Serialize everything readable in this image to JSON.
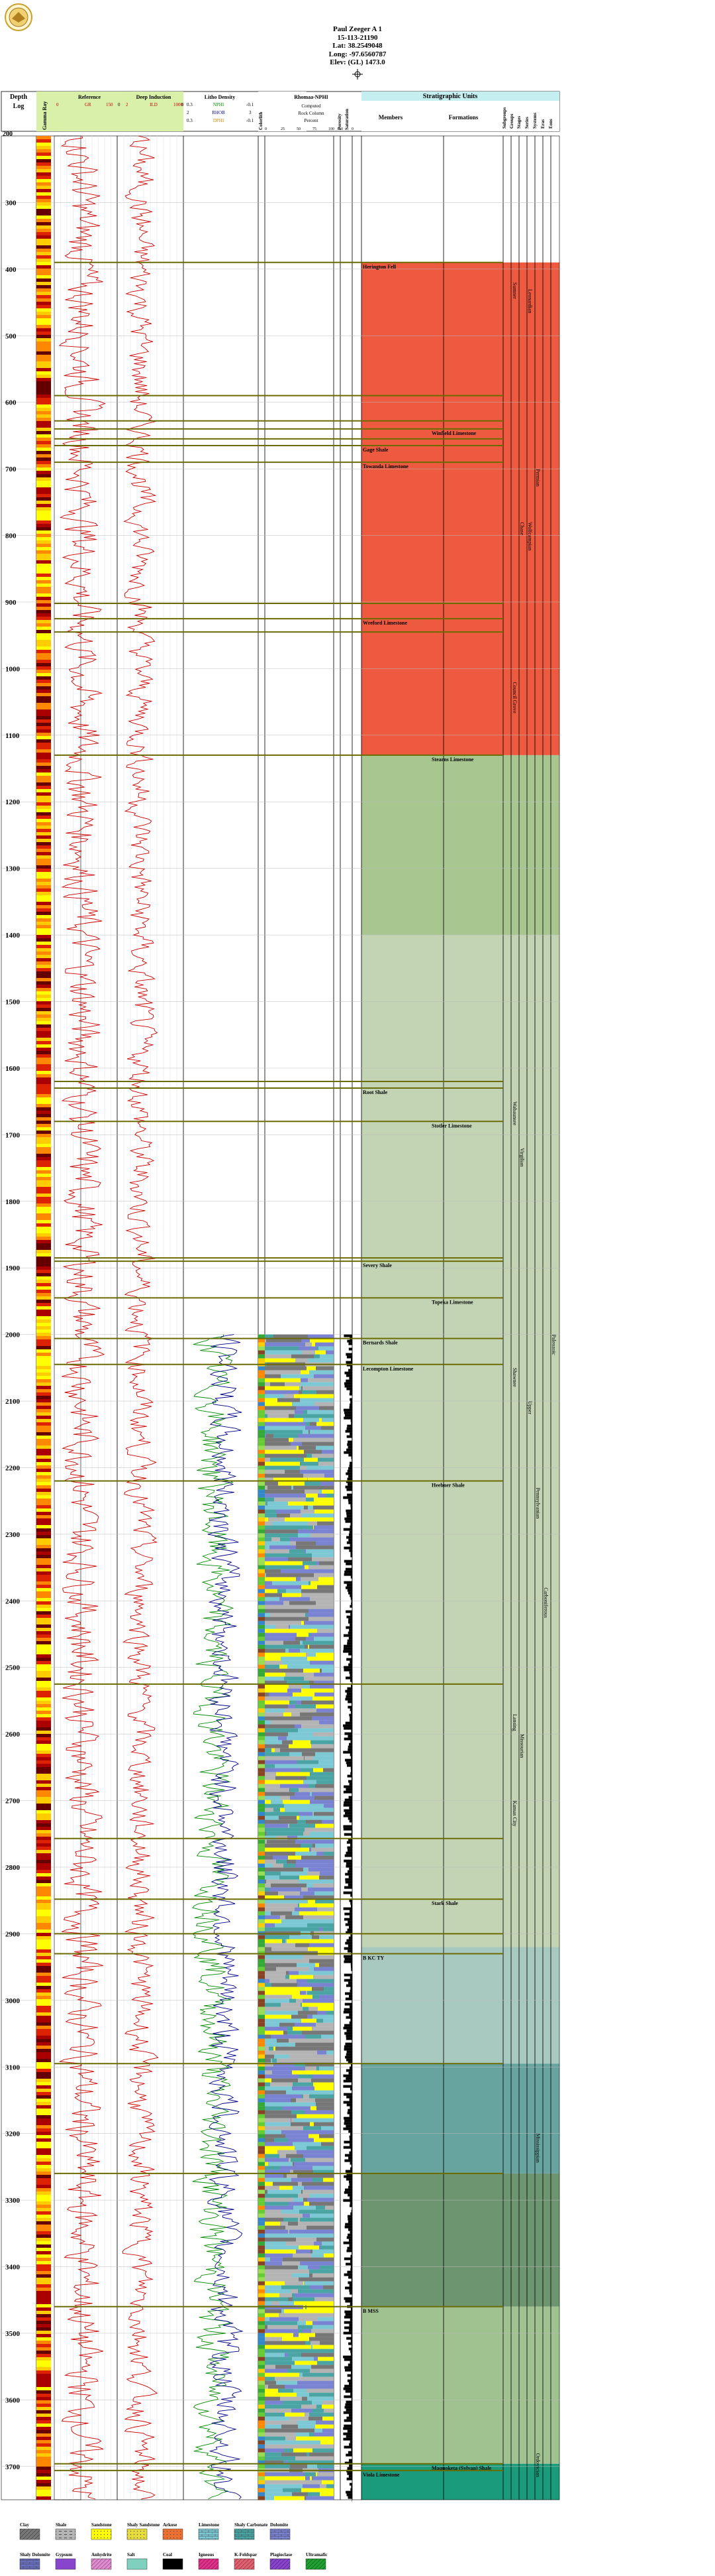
{
  "well": {
    "name": "Paul Zeeger A 1",
    "api": "15-113-21190",
    "lat": "Lat: 38.2549048",
    "long": "Long: -97.6560787",
    "elev": "Elev: (GL) 1473.0"
  },
  "columns": {
    "depth_header_1": "Depth",
    "depth_header_2": "Log",
    "gamma_header": "Gamma Ray",
    "gamma_left": "0",
    "gamma_right": "150",
    "reference": "Reference",
    "ref_gr": "GR",
    "ref_left": "0",
    "ref_right": "150",
    "ref_unit": "0",
    "deep_induction": "Deep Induction",
    "ind_left": "2",
    "ind_mid": "ILD",
    "ind_right": "1000",
    "ind_unit": "0",
    "litho_density": "Litho Density",
    "ld_l1": "0.3",
    "ld_n1": "NPHI",
    "ld_r1": "-0.1",
    "ld_l2": "2",
    "ld_n2": "RHOB",
    "ld_r2": "3",
    "ld_l3": "0.3",
    "ld_n3": "DPHI",
    "ld_r3": "-0.1",
    "colorlith": "Colorlith",
    "mineral_header": "Rhomaa-NPHI",
    "mineral_sub1": "Computed",
    "mineral_sub2": "Rock Column",
    "mineral_sub3": "Percent",
    "mineral_ticks": [
      "0",
      "25",
      "50",
      "75",
      "100"
    ],
    "porosity": "Porosity",
    "saturation": "Saturation",
    "porosity_ticks": [
      "50",
      "0"
    ],
    "strat_units": "Stratigraphic Units",
    "members": "Members",
    "formations": "Formations",
    "subgroups": "Subgroups",
    "groups": "Groups",
    "stages": "Stages",
    "series": "Series",
    "systems": "Systems",
    "eras": "Eras",
    "eons": "Eons"
  },
  "chart_data": {
    "type": "well-log",
    "depth_range": [
      200,
      3750
    ],
    "depth_ticks": [
      300,
      400,
      500,
      600,
      700,
      800,
      900,
      1000,
      1100,
      1200,
      1300,
      1400,
      1500,
      1600,
      1700,
      1800,
      1900,
      2000,
      2100,
      2200,
      2300,
      2400,
      2500,
      2600,
      2700,
      2800,
      2900,
      3000,
      3100,
      3200,
      3300,
      3400,
      3500,
      3600,
      3700
    ],
    "depth_tick_labels": [
      "300",
      "400",
      "500",
      "600",
      "700",
      "800",
      "900",
      "1000",
      "1100",
      "1200",
      "1300",
      "1400",
      "1500",
      "1600",
      "1700",
      "1800",
      "1900",
      "2000",
      "2100",
      "2200",
      "2300",
      "2400",
      "2500",
      "2600",
      "2700",
      "2800",
      "2900",
      "3000",
      "3100",
      "3200",
      "3300",
      "3400",
      "3500",
      "3600",
      "3700"
    ],
    "start_label": "200",
    "tops": [
      {
        "name": "Herington Fell",
        "depth": 390
      },
      {
        "name": "",
        "depth": 590
      },
      {
        "name": "",
        "depth": 628
      },
      {
        "name": "",
        "depth": 655
      },
      {
        "name": "Winfield Limestone",
        "depth": 640
      },
      {
        "name": "Gage Shale",
        "depth": 665
      },
      {
        "name": "Towanda Limestone",
        "depth": 690
      },
      {
        "name": "",
        "depth": 902
      },
      {
        "name": "Wreford Limestone",
        "depth": 925
      },
      {
        "name": "",
        "depth": 945
      },
      {
        "name": "Stearns Limestone",
        "depth": 1130
      },
      {
        "name": "",
        "depth": 1620
      },
      {
        "name": "Root Shale",
        "depth": 1630
      },
      {
        "name": "Stotler Limestone",
        "depth": 1680
      },
      {
        "name": "",
        "depth": 1885
      },
      {
        "name": "Severy Shale",
        "depth": 1890
      },
      {
        "name": "Topeka Limestone",
        "depth": 1945
      },
      {
        "name": "Bernards Shale",
        "depth": 2006
      },
      {
        "name": "Lecompton Limestone",
        "depth": 2045
      },
      {
        "name": "Heebner Shale",
        "depth": 2220
      },
      {
        "name": "",
        "depth": 2525
      },
      {
        "name": "",
        "depth": 2757
      },
      {
        "name": "Stark Shale",
        "depth": 2848
      },
      {
        "name": "",
        "depth": 2900
      },
      {
        "name": "B KC TY",
        "depth": 2930
      },
      {
        "name": "",
        "depth": 3095
      },
      {
        "name": "",
        "depth": 3260
      },
      {
        "name": "B MSS",
        "depth": 3460
      },
      {
        "name": "Maquoketa (Sylvan) Shale",
        "depth": 3696
      },
      {
        "name": "Viola Limestone",
        "depth": 3706
      },
      {
        "name": "",
        "depth": 3870
      }
    ],
    "strat_bands": [
      {
        "from": 390,
        "to": 1130,
        "color": "#ee5a40"
      },
      {
        "from": 1130,
        "to": 1400,
        "color": "#a8c690"
      },
      {
        "from": 1400,
        "to": 2920,
        "color": "#c2d4b4"
      },
      {
        "from": 2920,
        "to": 3095,
        "color": "#a8c9c0"
      },
      {
        "from": 3095,
        "to": 3260,
        "color": "#67a4a0"
      },
      {
        "from": 3260,
        "to": 3460,
        "color": "#6d9670"
      },
      {
        "from": 3460,
        "to": 3696,
        "color": "#a0c290"
      },
      {
        "from": 3696,
        "to": 3870,
        "color": "#1a9c7c"
      }
    ],
    "strat_labels": [
      {
        "col": "stages",
        "text": "Chase",
        "depth": 780
      },
      {
        "col": "series",
        "text": "Wolfcampian",
        "depth": 780
      },
      {
        "col": "systems",
        "text": "Permian",
        "depth": 700
      },
      {
        "col": "groups",
        "text": "Sumner",
        "depth": 420
      },
      {
        "col": "series",
        "text": "Leonardian",
        "depth": 430
      },
      {
        "col": "groups",
        "text": "Council Grove",
        "depth": 1020
      },
      {
        "col": "groups",
        "text": "Wabaunsee",
        "depth": 1650
      },
      {
        "col": "groups",
        "text": "Shawnee",
        "depth": 2050
      },
      {
        "col": "groups",
        "text": "Lansing",
        "depth": 2570
      },
      {
        "col": "groups",
        "text": "Kansas City",
        "depth": 2700
      },
      {
        "col": "stages",
        "text": "Virgilian",
        "depth": 1720
      },
      {
        "col": "stages",
        "text": "Missourian",
        "depth": 2600
      },
      {
        "col": "series",
        "text": "Upper",
        "depth": 2100
      },
      {
        "col": "systems",
        "text": "Pennsylvanian",
        "depth": 2230
      },
      {
        "col": "eras",
        "text": "Carboniferous",
        "depth": 2380
      },
      {
        "col": "eons",
        "text": "Paleozoic",
        "depth": 2000
      },
      {
        "col": "systems",
        "text": "Mississippian",
        "depth": 3200
      },
      {
        "col": "systems",
        "text": "Ordovician",
        "depth": 3680
      }
    ],
    "legend": [
      {
        "label": "Clay",
        "color": "#777777",
        "pattern": "hatch"
      },
      {
        "label": "Shale",
        "color": "#b4b4b4",
        "pattern": "dash"
      },
      {
        "label": "Sandstone",
        "color": "#ffff00",
        "pattern": "dot"
      },
      {
        "label": "Shaly Sandstone",
        "color": "#e6dc3c",
        "pattern": "dot"
      },
      {
        "label": "Arkose",
        "color": "#ee7030",
        "pattern": "dot"
      },
      {
        "label": "Limestone",
        "color": "#7cc8d4",
        "pattern": "brick"
      },
      {
        "label": "Shaly Carbonate",
        "color": "#4aa4a4",
        "pattern": "brick"
      },
      {
        "label": "Dolomite",
        "color": "#7a82d2",
        "pattern": "brick"
      },
      {
        "label": "Shaly Dolomite",
        "color": "#6a70c0",
        "pattern": "brick"
      },
      {
        "label": "Gypsum",
        "color": "#8844cc",
        "pattern": "none"
      },
      {
        "label": "Anhydrite",
        "color": "#e08ad0",
        "pattern": "hatch"
      },
      {
        "label": "Salt",
        "color": "#80d0c0",
        "pattern": "none"
      },
      {
        "label": "Coal",
        "color": "#000000",
        "pattern": "none"
      },
      {
        "label": "Igneous",
        "color": "#e0308a",
        "pattern": "hatch"
      },
      {
        "label": "K-Feldspar",
        "color": "#e06070",
        "pattern": "hatch"
      },
      {
        "label": "Plagioclase",
        "color": "#8844cc",
        "pattern": "hatch"
      },
      {
        "label": "Ultramafic",
        "color": "#20a030",
        "pattern": "hatch"
      }
    ]
  }
}
